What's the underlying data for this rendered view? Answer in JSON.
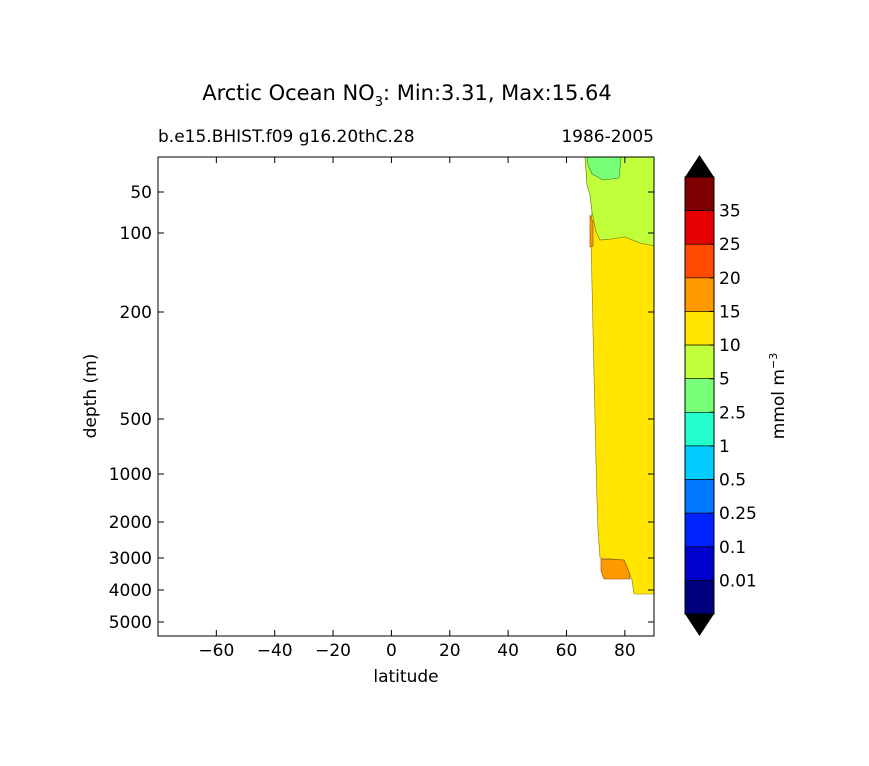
{
  "chart_data": {
    "type": "heatmap",
    "title": {
      "prefix": "Arctic Ocean NO",
      "subscript": "3",
      "suffix": ": Min:3.31, Max:15.64"
    },
    "subtitle_left": "b.e15.BHIST.f09 g16.20thC.28",
    "subtitle_right": "1986-2005",
    "xlabel": "latitude",
    "ylabel": "depth (m)",
    "xlim": [
      -80,
      90
    ],
    "xticks": [
      -60,
      -40,
      -20,
      0,
      20,
      40,
      60,
      80
    ],
    "xtick_labels": [
      "−60",
      "−40",
      "−20",
      "0",
      "20",
      "40",
      "60",
      "80"
    ],
    "yticks": [
      50,
      100,
      200,
      500,
      1000,
      2000,
      3000,
      4000,
      5000
    ],
    "yaxis": "depth, increasing downward (nonlinear)",
    "colorbar": {
      "label": "mmol m",
      "label_exponent": "−3",
      "levels": [
        "0.01",
        "0.1",
        "0.25",
        "0.5",
        "1",
        "2.5",
        "5",
        "10",
        "15",
        "20",
        "25",
        "35"
      ],
      "colors": [
        "#00007f",
        "#0000cc",
        "#0022ff",
        "#0077ff",
        "#00ccff",
        "#22ffcc",
        "#77ff77",
        "#c1ff3a",
        "#ffe500",
        "#ff9900",
        "#ff4a00",
        "#e40000",
        "#7f0000"
      ],
      "extend": "both"
    },
    "regions": [
      {
        "value_range": "2.5-5",
        "color": "#77ff77",
        "location": "surface, about 67-78°N, depth to about 40 m"
      },
      {
        "value_range": "5-10",
        "color": "#c1ff3a",
        "location": "upper layer, 67-90°N, to about 110 m"
      },
      {
        "value_range": "10-15",
        "color": "#ffe500",
        "location": "68-90°N, 110 m to about 4000 m"
      },
      {
        "value_range": "15-20",
        "color": "#ff9900",
        "location": "bottom patch, about 73-81°N, 3000-3500 m"
      }
    ]
  }
}
